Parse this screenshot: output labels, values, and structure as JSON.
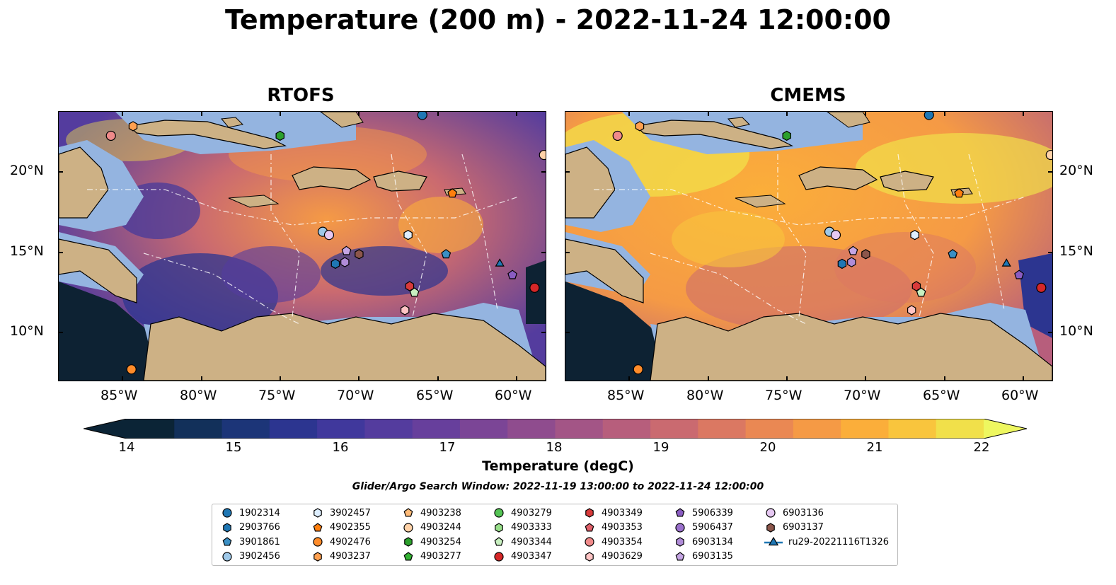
{
  "title": "Temperature (200 m) - 2022-11-24 12:00:00",
  "panels": [
    {
      "title": "RTOFS"
    },
    {
      "title": "CMEMS"
    }
  ],
  "lat_ticks": [
    "20°N",
    "15°N",
    "10°N"
  ],
  "lon_ticks": [
    "85°W",
    "80°W",
    "75°W",
    "70°W",
    "65°W",
    "60°W"
  ],
  "colorbar": {
    "label": "Temperature (degC)",
    "min": 14,
    "max": 22,
    "step": 0.5,
    "tick_labels": [
      "14",
      "15",
      "16",
      "17",
      "18",
      "19",
      "20",
      "21",
      "22"
    ],
    "colors": [
      "#0b2436",
      "#12305a",
      "#1c3578",
      "#2c3590",
      "#40389c",
      "#543c9e",
      "#673f9c",
      "#7b4596",
      "#8f4c8e",
      "#a35586",
      "#b75e7c",
      "#ca6a70",
      "#db7862",
      "#ea8853",
      "#f59a45",
      "#fbae3a",
      "#f9c53d",
      "#f1e04a"
    ],
    "extend_low": "#0b2436",
    "extend_high": "#eef760"
  },
  "search_window": "Glider/Argo Search Window: 2022-11-19 13:00:00 to 2022-11-24 12:00:00",
  "map_colors": {
    "land": "#cdb185",
    "shelf": "#94b4e0",
    "deep": "#0d2233"
  },
  "legend": [
    {
      "label": "1902314",
      "marker": "circle",
      "color": "#1f77b4"
    },
    {
      "label": "2903766",
      "marker": "hexagon",
      "color": "#1f77b4"
    },
    {
      "label": "3901861",
      "marker": "pentagon",
      "color": "#3a8fc4"
    },
    {
      "label": "3902456",
      "marker": "circle",
      "color": "#9ec8e8"
    },
    {
      "label": "3902457",
      "marker": "hexagon",
      "color": "#ddeeff"
    },
    {
      "label": "4902355",
      "marker": "pentagon",
      "color": "#ff7f0e"
    },
    {
      "label": "4902476",
      "marker": "circle",
      "color": "#ff8c2a"
    },
    {
      "label": "4903237",
      "marker": "hexagon",
      "color": "#ffa050"
    },
    {
      "label": "4903238",
      "marker": "pentagon",
      "color": "#ffbb78"
    },
    {
      "label": "4903244",
      "marker": "circle",
      "color": "#ffd2a8"
    },
    {
      "label": "4903254",
      "marker": "hexagon",
      "color": "#2ca02c"
    },
    {
      "label": "4903277",
      "marker": "pentagon",
      "color": "#33b233"
    },
    {
      "label": "4903279",
      "marker": "circle",
      "color": "#55c455"
    },
    {
      "label": "4903333",
      "marker": "hexagon",
      "color": "#98df8a"
    },
    {
      "label": "4903344",
      "marker": "pentagon",
      "color": "#c8f0c0"
    },
    {
      "label": "4903347",
      "marker": "circle",
      "color": "#d62728"
    },
    {
      "label": "4903349",
      "marker": "hexagon",
      "color": "#d83a3a"
    },
    {
      "label": "4903353",
      "marker": "pentagon",
      "color": "#e0606a"
    },
    {
      "label": "4903354",
      "marker": "circle",
      "color": "#f08a8a"
    },
    {
      "label": "4903629",
      "marker": "hexagon",
      "color": "#ffc4c4"
    },
    {
      "label": "5906339",
      "marker": "pentagon",
      "color": "#8a5cc2"
    },
    {
      "label": "5906437",
      "marker": "circle",
      "color": "#9a70cc"
    },
    {
      "label": "6903134",
      "marker": "hexagon",
      "color": "#b08cd8"
    },
    {
      "label": "6903135",
      "marker": "pentagon",
      "color": "#c5a5e4"
    },
    {
      "label": "6903136",
      "marker": "circle",
      "color": "#e6c8f2"
    },
    {
      "label": "6903137",
      "marker": "hexagon",
      "color": "#8c564b"
    },
    {
      "label": "ru29-20221116T1326",
      "marker": "triangle-line",
      "color": "#1f77b4"
    }
  ],
  "floats": [
    {
      "id": "1902314",
      "lon": -66.0,
      "lat": 23.7
    },
    {
      "id": "2903766",
      "lon": -71.5,
      "lat": 14.4
    },
    {
      "id": "3901861",
      "lon": -64.5,
      "lat": 15.0
    },
    {
      "id": "3902456",
      "lon": -72.3,
      "lat": 16.4
    },
    {
      "id": "3902457",
      "lon": -66.9,
      "lat": 16.2
    },
    {
      "id": "4902355",
      "lon": -64.1,
      "lat": 18.8
    },
    {
      "id": "4902476",
      "lon": -84.4,
      "lat": 7.8
    },
    {
      "id": "4903237",
      "lon": -84.3,
      "lat": 23.0
    },
    {
      "id": "4903244",
      "lon": -58.3,
      "lat": 21.2
    },
    {
      "id": "4903254",
      "lon": -75.0,
      "lat": 22.4
    },
    {
      "id": "4903344",
      "lon": -66.5,
      "lat": 12.6
    },
    {
      "id": "4903347",
      "lon": -58.9,
      "lat": 12.9
    },
    {
      "id": "4903349",
      "lon": -66.8,
      "lat": 13.0
    },
    {
      "id": "4903354",
      "lon": -85.7,
      "lat": 22.4
    },
    {
      "id": "4903629",
      "lon": -67.1,
      "lat": 11.5
    },
    {
      "id": "5906339",
      "lon": -60.3,
      "lat": 13.7
    },
    {
      "id": "6903134",
      "lon": -70.9,
      "lat": 14.5
    },
    {
      "id": "6903135",
      "lon": -70.8,
      "lat": 15.2
    },
    {
      "id": "6903136",
      "lon": -71.9,
      "lat": 16.2
    },
    {
      "id": "6903137",
      "lon": -70.0,
      "lat": 15.0
    },
    {
      "id": "ru29-20221116T1326",
      "lon": -61.1,
      "lat": 14.4
    }
  ]
}
